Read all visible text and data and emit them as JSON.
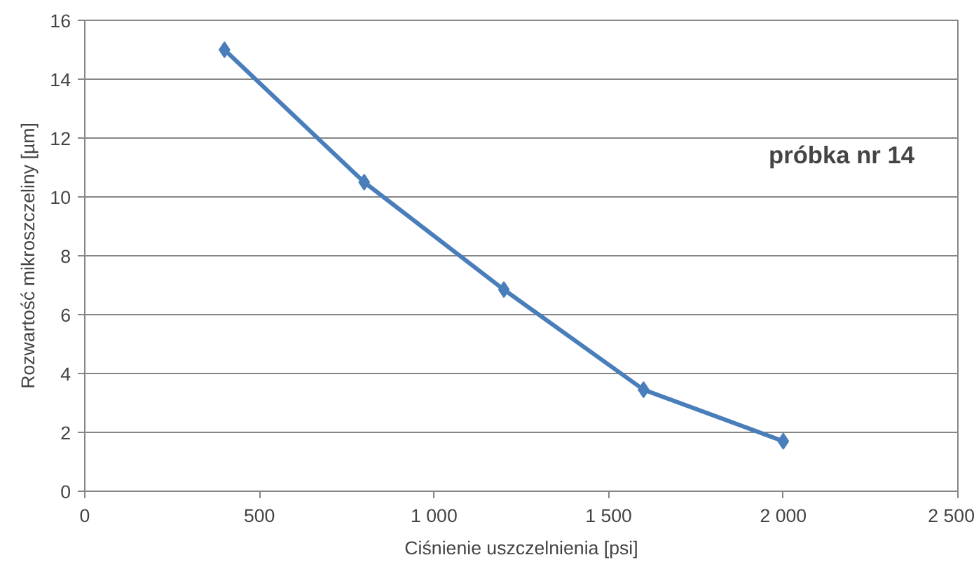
{
  "chart_data": {
    "type": "line",
    "xlabel": "Ciśnienie uszczelnienia [psi]",
    "ylabel": "Rozwartość mikroszczeliny [µm]",
    "x": [
      400,
      800,
      1200,
      1600,
      2000
    ],
    "series": [
      {
        "color": "#4a7ebb",
        "values": [
          15.0,
          10.5,
          6.85,
          3.45,
          1.7
        ]
      }
    ],
    "xlim": [
      0,
      2500
    ],
    "ylim": [
      0,
      16
    ],
    "xticks": [
      0,
      500,
      {
        "value": 1000,
        "label": "1 000"
      },
      {
        "value": 1500,
        "label": "1 500"
      },
      {
        "value": 2000,
        "label": "2 000"
      },
      {
        "value": 2500,
        "label": "2 500"
      }
    ],
    "yticks": [
      0,
      2,
      4,
      6,
      8,
      10,
      12,
      14,
      16
    ],
    "grid": "y",
    "marker": "diamond",
    "line_style": "solid",
    "annotations": [
      "próbka nr 14"
    ]
  }
}
